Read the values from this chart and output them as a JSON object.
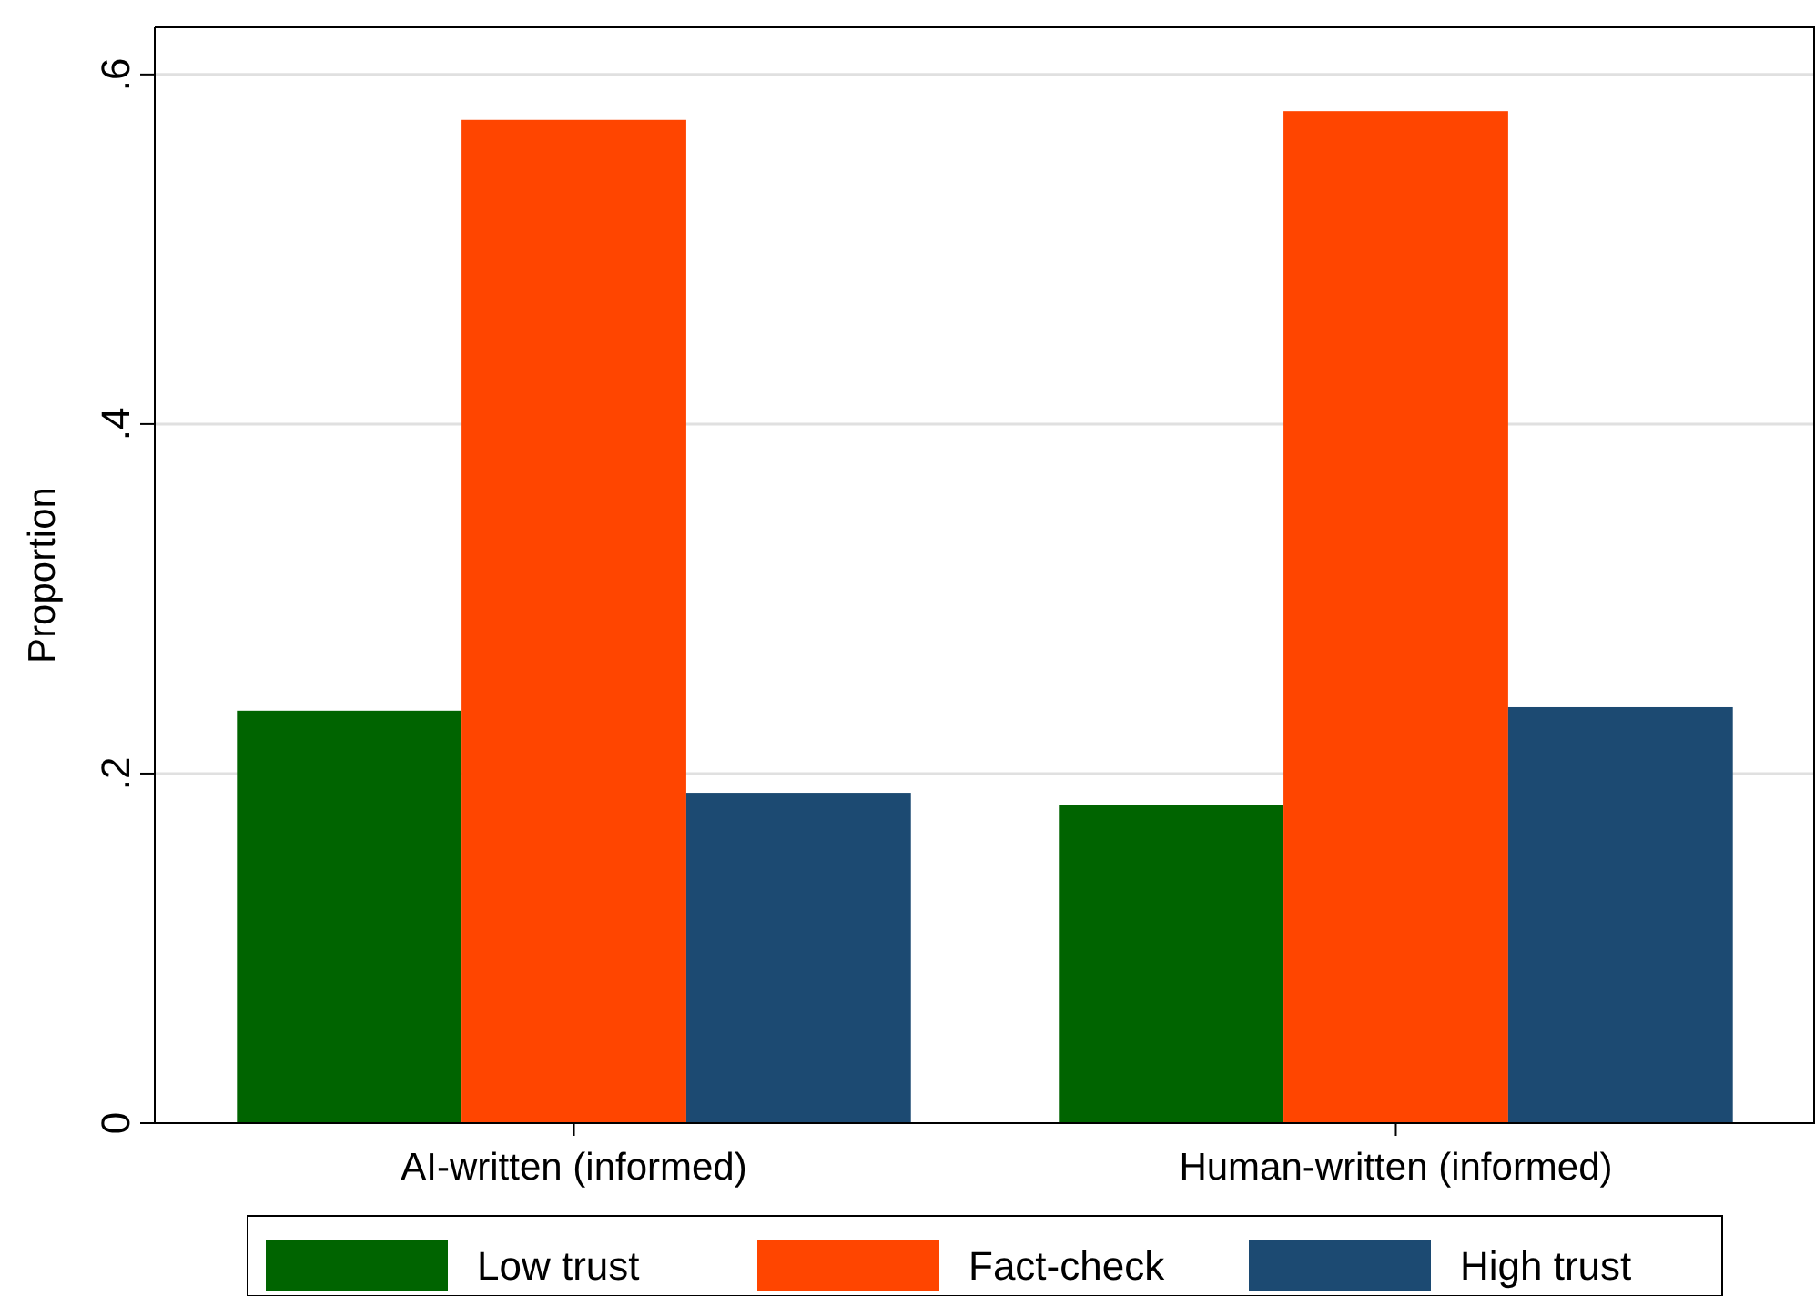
{
  "chart_data": {
    "type": "bar",
    "ylabel": "Proportion",
    "categories": [
      "AI-written (informed)",
      "Human-written (informed)"
    ],
    "series": [
      {
        "name": "Low trust",
        "color": "#006400",
        "values": [
          0.236,
          0.182
        ]
      },
      {
        "name": "Fact-check",
        "color": "#ff4500",
        "values": [
          0.574,
          0.579
        ]
      },
      {
        "name": "High trust",
        "color": "#1c4a72",
        "values": [
          0.189,
          0.238
        ]
      }
    ],
    "ylim": [
      0,
      0.627
    ],
    "yticks": [
      {
        "value": 0,
        "label": "0"
      },
      {
        "value": 0.2,
        "label": ".2"
      },
      {
        "value": 0.4,
        "label": ".4"
      },
      {
        "value": 0.6,
        "label": ".6"
      }
    ],
    "grid": "y",
    "legend": "bottom"
  }
}
